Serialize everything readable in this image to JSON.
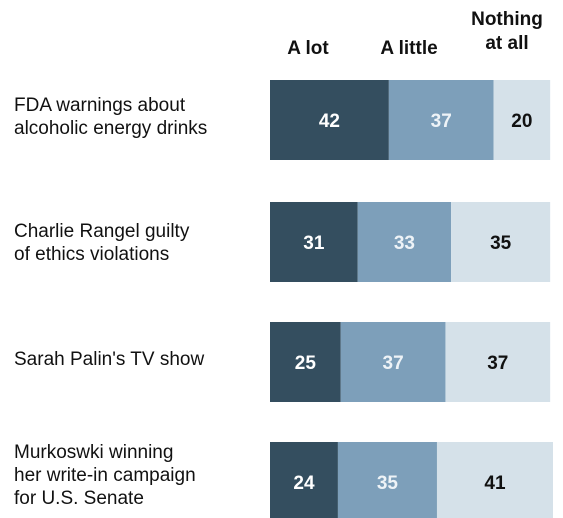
{
  "chart_data": {
    "type": "bar",
    "orientation": "horizontal",
    "stacked": true,
    "categories": [
      "FDA warnings about\nalcoholic energy drinks",
      "Charlie Rangel guilty\nof ethics violations",
      "Sarah Palin's TV show",
      "Murkoswki winning\nher write-in campaign\nfor U.S. Senate"
    ],
    "series": [
      {
        "name": "A lot",
        "values": [
          42,
          31,
          25,
          24
        ],
        "color": "#344e5f",
        "label_color": "#ffffff"
      },
      {
        "name": "A little",
        "values": [
          37,
          33,
          37,
          35
        ],
        "color": "#7d9fba",
        "label_color": "#eef3f7"
      },
      {
        "name": "Nothing\nat all",
        "values": [
          20,
          35,
          37,
          41
        ],
        "color": "#d5e1e9",
        "label_color": "#111111"
      }
    ],
    "xlim": [
      0,
      100
    ],
    "grid": false,
    "legend": "top"
  }
}
